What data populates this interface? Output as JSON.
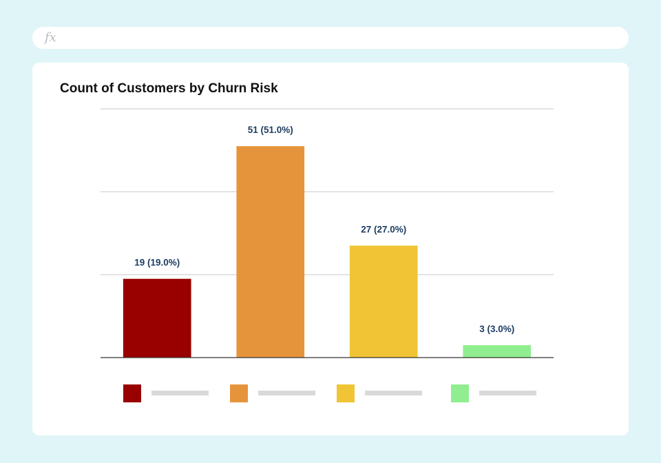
{
  "formula_bar": {
    "icon": "fx-icon",
    "label": "fx"
  },
  "chart_data": {
    "type": "bar",
    "title": "Count of Customers by Churn Risk",
    "xlabel": "",
    "ylabel": "",
    "ylim": [
      0,
      60
    ],
    "grid": true,
    "legend": "bottom",
    "categories": [
      "",
      "",
      "",
      ""
    ],
    "values": [
      19,
      51,
      27,
      3
    ],
    "data_labels": [
      "19 (19.0%)",
      "51 (51.0%)",
      "27 (27.0%)",
      "3 (3.0%)"
    ],
    "colors": [
      "#990000",
      "#e6943c",
      "#f0c434",
      "#90ee90"
    ]
  }
}
